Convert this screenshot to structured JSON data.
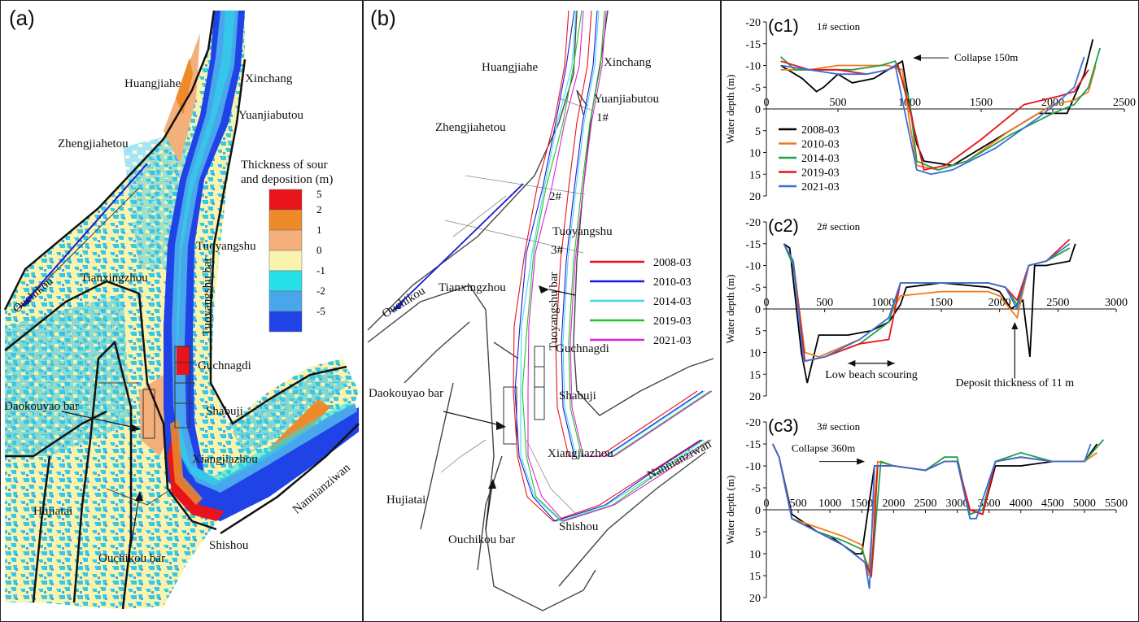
{
  "panel_a": {
    "label": "(a)",
    "places": [
      "Huangjiahe",
      "Xinchang",
      "Yuanjiabutou",
      "Zhengjiahetou",
      "Tuoyangshu",
      "Tuoyangshu bar",
      "Tianxingzhou",
      "Ouchikou",
      "Guchnagdi",
      "Daokouyao bar",
      "Shabuji",
      "Xiangjiazhou",
      "Nannianziwan",
      "Hujiatai",
      "Ouchikou bar",
      "Shishou"
    ],
    "legend_title_1": "Thickness of sour",
    "legend_title_2": "and deposition (m)",
    "legend": [
      {
        "label": "5",
        "color": "#e8141b"
      },
      {
        "label": "2",
        "color": "#ee8a2a"
      },
      {
        "label": "1",
        "color": "#f4b07a"
      },
      {
        "label": "0",
        "color": "#f9f3ae"
      },
      {
        "label": "-1",
        "color": "#27e0ea"
      },
      {
        "label": "-2",
        "color": "#4aa6ec"
      },
      {
        "label": "-5",
        "color": "#1f43e6"
      }
    ]
  },
  "panel_b": {
    "label": "(b)",
    "places": [
      "Huangjiahe",
      "Xinchang",
      "Yuanjiabutou",
      "1#",
      "Zhengjiahetou",
      "2#",
      "Tuoyangshu",
      "3#",
      "Ouchikou",
      "Tianxingzhou",
      "Tuoyangshu bar",
      "Guchnagdi",
      "Daokouyao bar",
      "Shabuji",
      "Xiangjiazhou",
      "Nannianziwan",
      "Hujiatai",
      "Ouchikou bar",
      "Shishou"
    ],
    "legend": [
      {
        "label": "2008-03",
        "color": "#e8141b"
      },
      {
        "label": "2010-03",
        "color": "#1a1ad6"
      },
      {
        "label": "2014-03",
        "color": "#44d8f0"
      },
      {
        "label": "2019-03",
        "color": "#22c422"
      },
      {
        "label": "2021-03",
        "color": "#e020e0"
      }
    ]
  },
  "panel_c": {
    "ylabel": "Water depth (m)",
    "c1": {
      "label": "(c1)",
      "title": "1# section",
      "annotation": "Collapse 150m",
      "xticks": [
        "500",
        "1000",
        "1500",
        "2000",
        "2500"
      ],
      "xmax": 2500,
      "xzero": "0",
      "yticks": [
        "-20",
        "-15",
        "-10",
        "-5",
        "0",
        "5",
        "10",
        "15",
        "20"
      ]
    },
    "c2": {
      "label": "(c2)",
      "title": "2# section",
      "annotation1": "Low beach scouring",
      "annotation2": "Deposit thickness of 11 m",
      "xticks": [
        "500",
        "1000",
        "1500",
        "2000",
        "2500",
        "3000"
      ],
      "xmax": 3000,
      "xzero": "0",
      "yticks": [
        "-20",
        "-15",
        "-10",
        "-5",
        "0",
        "5",
        "10",
        "15",
        "20"
      ]
    },
    "c3": {
      "label": "(c3)",
      "title": "3# section",
      "annotation": "Collapse 360m",
      "xticks": [
        "500",
        "1000",
        "1500",
        "2000",
        "2500",
        "3000",
        "3500",
        "4000",
        "4500",
        "5000",
        "5500"
      ],
      "xmax": 5500,
      "xzero": "0",
      "yticks": [
        "-20",
        "-15",
        "-10",
        "-5",
        "0",
        "5",
        "10",
        "15",
        "20"
      ]
    },
    "legend": [
      {
        "label": "2008-03",
        "color": "#000000"
      },
      {
        "label": "2010-03",
        "color": "#f07a1e"
      },
      {
        "label": "2014-03",
        "color": "#1fa04a"
      },
      {
        "label": "2019-03",
        "color": "#e8141b"
      },
      {
        "label": "2021-03",
        "color": "#3a6fd8"
      }
    ]
  },
  "chart_data": [
    {
      "type": "line",
      "title": "1# section",
      "ylabel": "Water depth (m)",
      "xlim": [
        0,
        2500
      ],
      "ylim": [
        -20,
        20
      ],
      "series": [
        {
          "name": "2008-03",
          "x": [
            100,
            150,
            250,
            350,
            400,
            500,
            600,
            750,
            850,
            950,
            1000,
            1050,
            1100,
            1300,
            1600,
            1900,
            2100,
            2220,
            2280
          ],
          "y": [
            -10,
            -9,
            -7,
            -4,
            -5,
            -8,
            -6,
            -7,
            -9,
            -11,
            -1,
            8,
            12,
            13,
            7,
            1,
            1,
            -8,
            -16
          ]
        },
        {
          "name": "2010-03",
          "x": [
            100,
            300,
            500,
            700,
            850,
            950,
            1000,
            1050,
            1200,
            1400,
            1700,
            2000,
            2150,
            2250,
            2300
          ],
          "y": [
            -9,
            -9,
            -10,
            -10,
            -10,
            -9,
            3,
            13,
            14,
            12,
            5,
            -1,
            -2,
            -4,
            -10
          ]
        },
        {
          "name": "2014-03",
          "x": [
            100,
            200,
            400,
            600,
            800,
            900,
            1000,
            1050,
            1200,
            1400,
            1700,
            2000,
            2150,
            2250,
            2330
          ],
          "y": [
            -12,
            -9,
            -9,
            -9,
            -10,
            -11,
            -2,
            12,
            14,
            12,
            6,
            1,
            -1,
            -5,
            -14
          ]
        },
        {
          "name": "2019-03",
          "x": [
            100,
            300,
            500,
            700,
            850,
            920,
            1000,
            1100,
            1250,
            1500,
            1800,
            2050,
            2150,
            2250
          ],
          "y": [
            -11,
            -9,
            -9,
            -8,
            -9,
            -10,
            0,
            14,
            13,
            7,
            -1,
            -3,
            -4,
            -9
          ]
        },
        {
          "name": "2021-03",
          "x": [
            100,
            300,
            500,
            700,
            850,
            900,
            950,
            1050,
            1150,
            1300,
            1600,
            1900,
            2050,
            2150,
            2220
          ],
          "y": [
            -10,
            -9,
            -8,
            -8,
            -9,
            -10,
            -2,
            14,
            15,
            14,
            9,
            2,
            -2,
            -5,
            -12
          ]
        }
      ]
    },
    {
      "type": "line",
      "title": "2# section",
      "ylabel": "Water depth (m)",
      "xlim": [
        0,
        3000
      ],
      "ylim": [
        -20,
        20
      ],
      "series": [
        {
          "name": "2008-03",
          "x": [
            150,
            200,
            300,
            350,
            450,
            700,
            900,
            1050,
            1150,
            1200,
            1500,
            1900,
            2000,
            2100,
            2200,
            2260,
            2300,
            2400,
            2600,
            2650
          ],
          "y": [
            -15,
            -14,
            10,
            17,
            6,
            6,
            5,
            3,
            -1,
            -5,
            -6,
            -5,
            -4,
            0,
            -2,
            11,
            -10,
            -10,
            -11,
            -15
          ]
        },
        {
          "name": "2010-03",
          "x": [
            150,
            230,
            330,
            450,
            800,
            1050,
            1150,
            1500,
            1900,
            2000,
            2150,
            2250,
            2400,
            2600
          ],
          "y": [
            -15,
            -11,
            10,
            11,
            7,
            2,
            -3,
            -4,
            -4,
            -3,
            2,
            -10,
            -11,
            -14
          ]
        },
        {
          "name": "2014-03",
          "x": [
            150,
            230,
            330,
            500,
            800,
            1050,
            1150,
            1500,
            1900,
            2050,
            2150,
            2250,
            2400,
            2600
          ],
          "y": [
            -15,
            -10,
            12,
            11,
            8,
            3,
            -6,
            -6,
            -6,
            -5,
            -1,
            -10,
            -11,
            -14
          ]
        },
        {
          "name": "2019-03",
          "x": [
            150,
            230,
            330,
            500,
            800,
            1050,
            1150,
            1500,
            1900,
            2050,
            2150,
            2250,
            2400,
            2600
          ],
          "y": [
            -15,
            -11,
            12,
            11,
            8,
            7,
            -6,
            -6,
            -6,
            -5,
            -2,
            -10,
            -11,
            -16
          ]
        },
        {
          "name": "2021-03",
          "x": [
            150,
            230,
            320,
            500,
            800,
            1050,
            1150,
            1500,
            1900,
            2050,
            2150,
            2250,
            2400,
            2600
          ],
          "y": [
            -15,
            -11,
            12,
            11,
            7,
            2,
            -6,
            -6,
            -6,
            -5,
            0,
            -10,
            -11,
            -15
          ]
        }
      ]
    },
    {
      "type": "line",
      "title": "3# section",
      "ylabel": "Water depth (m)",
      "xlim": [
        0,
        5500
      ],
      "ylim": [
        -20,
        20
      ],
      "series": [
        {
          "name": "2008-03",
          "x": [
            100,
            200,
            400,
            800,
            1000,
            1200,
            1400,
            1500,
            1700,
            2000,
            2500,
            2800,
            3000,
            3200,
            3400,
            3600,
            4000,
            4500,
            5000,
            5200
          ],
          "y": [
            -15,
            -12,
            1,
            5,
            6,
            8,
            10,
            10,
            -10,
            -10,
            -9,
            -11,
            -11,
            0,
            1,
            -10,
            -10,
            -11,
            -11,
            -15
          ]
        },
        {
          "name": "2010-03",
          "x": [
            100,
            200,
            400,
            800,
            1200,
            1500,
            1600,
            1750,
            2000,
            2500,
            2800,
            3000,
            3200,
            3400,
            3600,
            4000,
            4500,
            5000,
            5200
          ],
          "y": [
            -15,
            -12,
            2,
            4,
            6,
            8,
            15,
            -11,
            -10,
            -9,
            -11,
            -11,
            0,
            1,
            -11,
            -12,
            -11,
            -11,
            -13
          ]
        },
        {
          "name": "2014-03",
          "x": [
            100,
            200,
            400,
            800,
            1200,
            1500,
            1650,
            1800,
            2000,
            2500,
            2800,
            3000,
            3200,
            3400,
            3600,
            4000,
            4500,
            5000,
            5300
          ],
          "y": [
            -15,
            -12,
            2,
            5,
            7,
            9,
            15,
            -11,
            -10,
            -9,
            -12,
            -12,
            1,
            0,
            -11,
            -13,
            -11,
            -11,
            -16
          ]
        },
        {
          "name": "2019-03",
          "x": [
            100,
            200,
            400,
            800,
            1200,
            1550,
            1650,
            1750,
            2000,
            2500,
            2800,
            3000,
            3200,
            3400,
            3600,
            4000,
            4500,
            5000
          ],
          "y": [
            -15,
            -12,
            2,
            5,
            8,
            12,
            15,
            -10,
            -10,
            -9,
            -11,
            -11,
            0,
            1,
            -11,
            -12,
            -11,
            -11
          ]
        },
        {
          "name": "2021-03",
          "x": [
            100,
            200,
            400,
            800,
            1200,
            1550,
            1620,
            1700,
            2000,
            2500,
            2800,
            3000,
            3200,
            3300,
            3600,
            4000,
            4500,
            5000,
            5100
          ],
          "y": [
            -15,
            -12,
            2,
            5,
            8,
            12,
            18,
            -10,
            -10,
            -9,
            -11,
            -11,
            2,
            2,
            -11,
            -12,
            -11,
            -11,
            -15
          ]
        }
      ]
    }
  ]
}
